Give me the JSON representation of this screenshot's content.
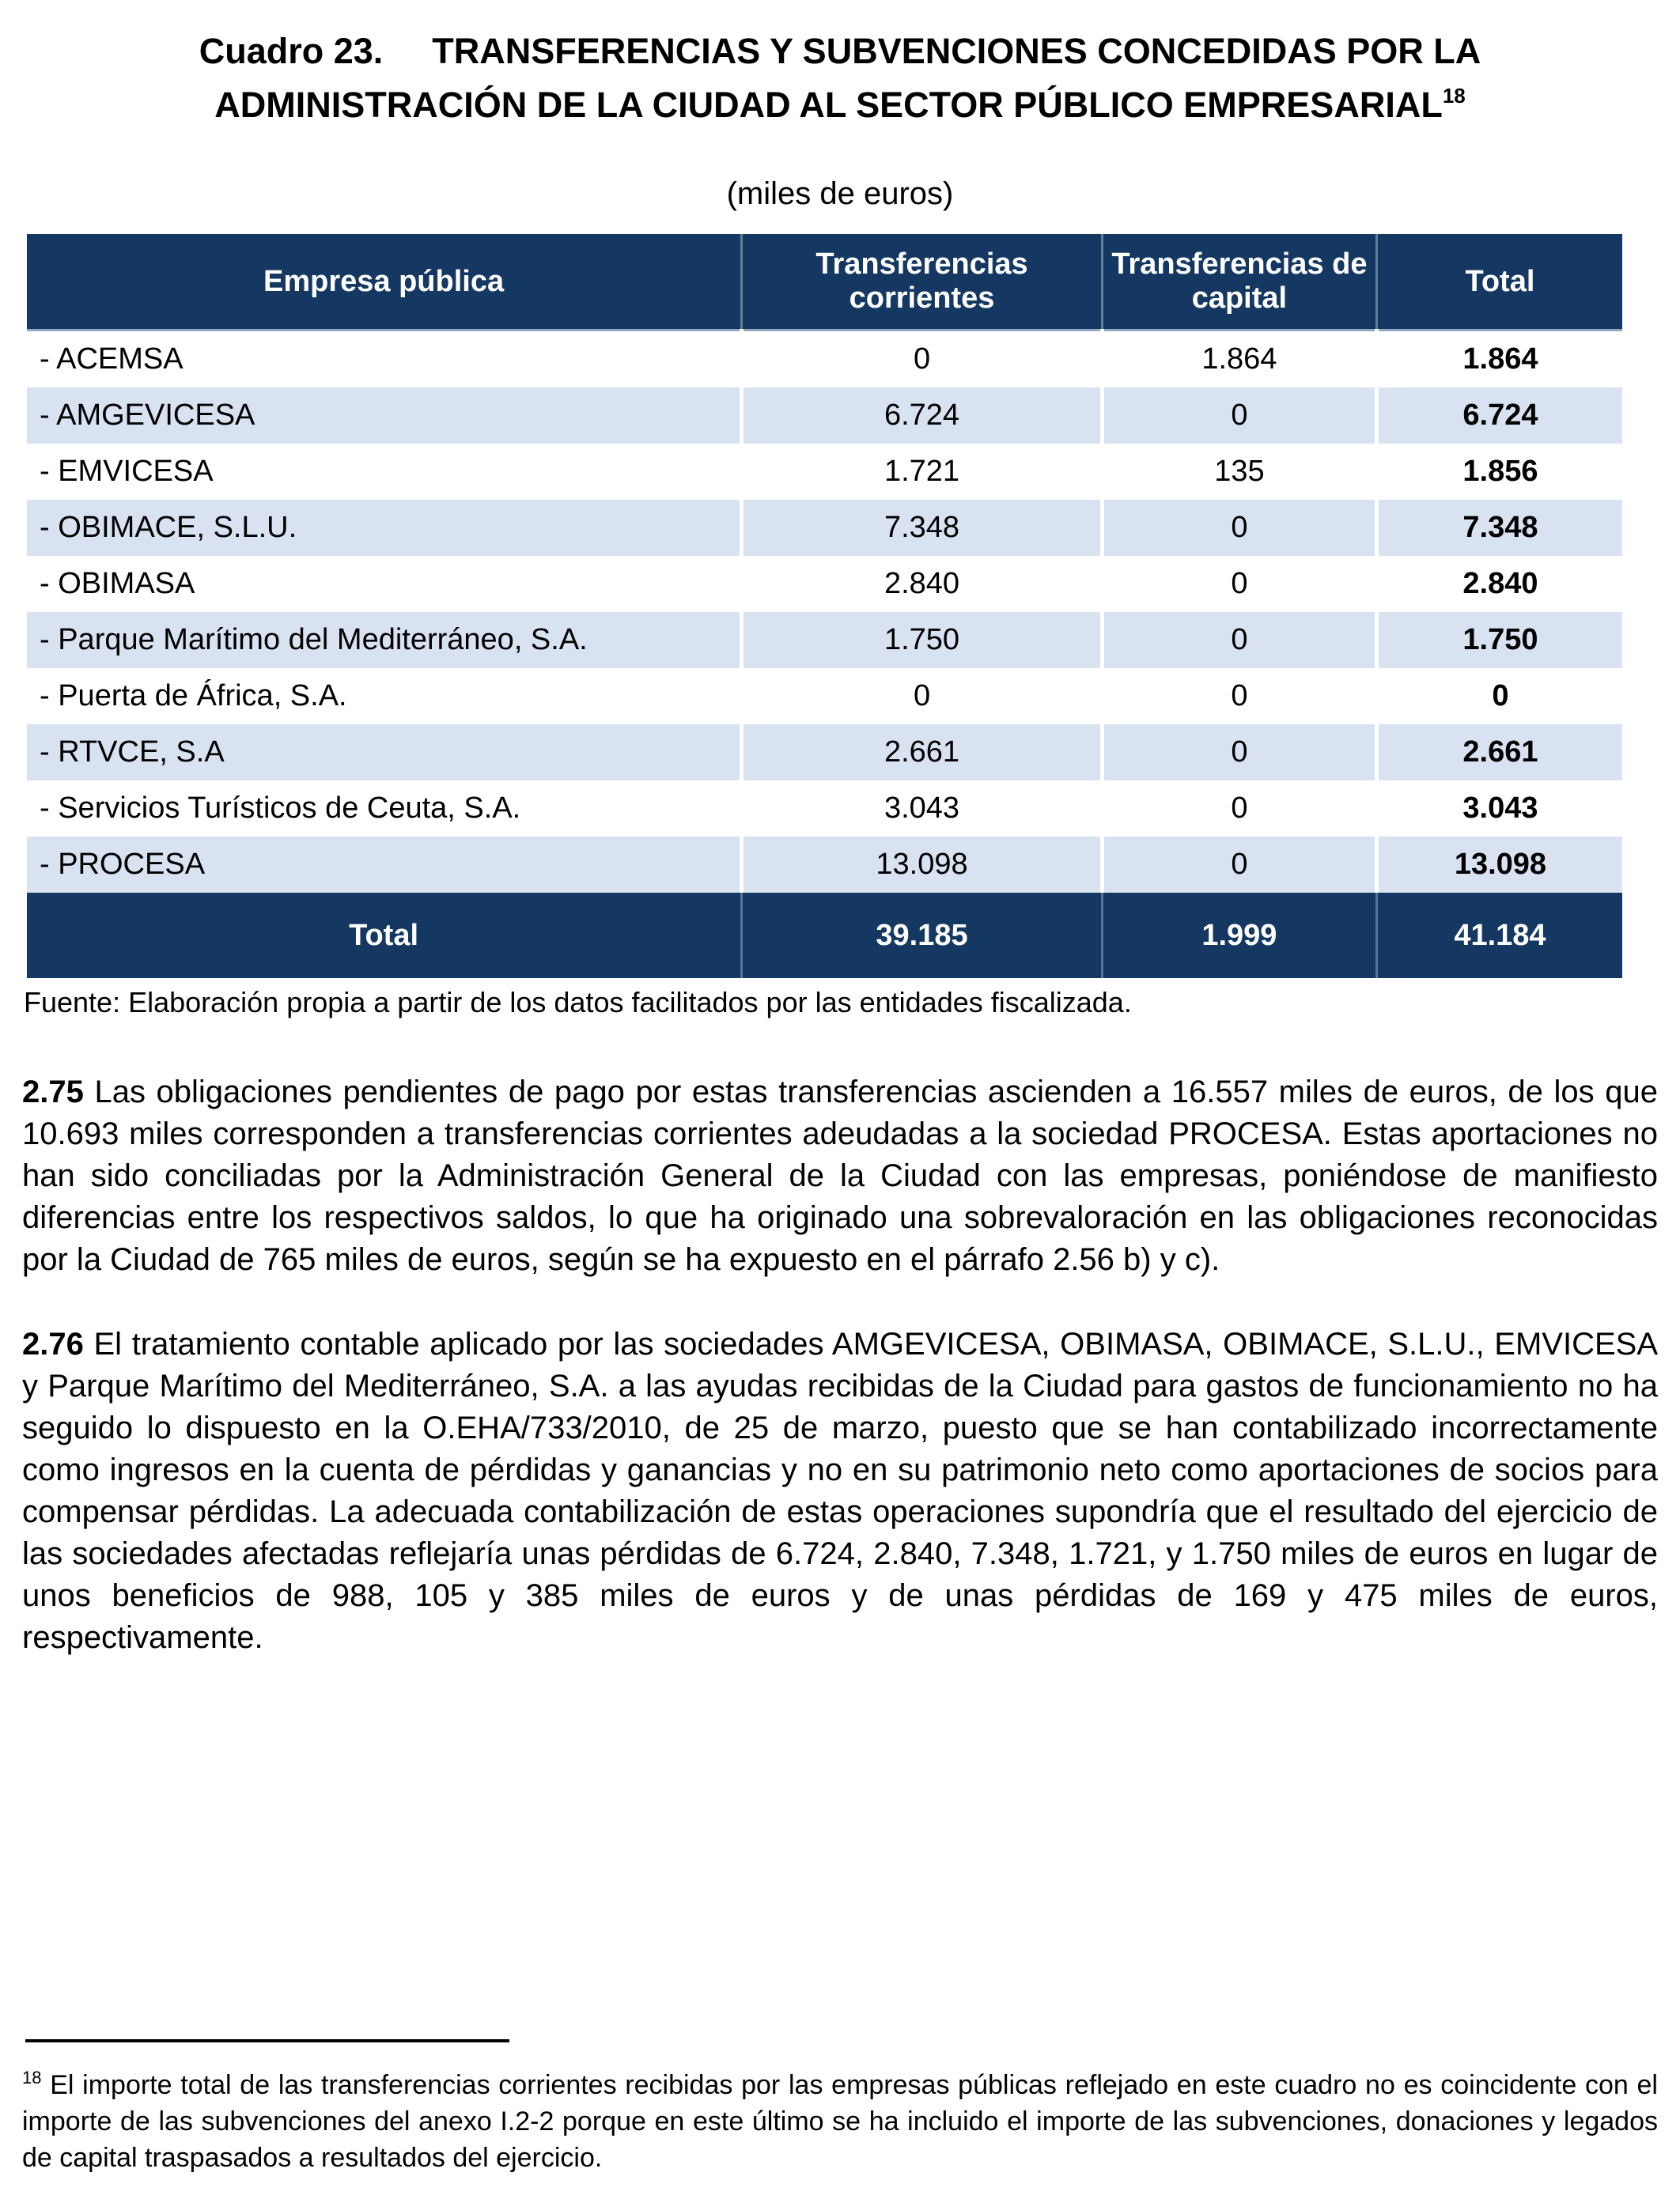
{
  "title": {
    "label": "Cuadro 23.",
    "line1": "TRANSFERENCIAS Y SUBVENCIONES CONCEDIDAS POR LA",
    "line2": "ADMINISTRACIÓN DE LA CIUDAD AL SECTOR PÚBLICO EMPRESARIAL",
    "footnote_ref": "18",
    "subtitle": "(miles de euros)"
  },
  "table": {
    "headers": [
      "Empresa pública",
      "Transferencias corrientes",
      "Transferencias de capital",
      "Total"
    ],
    "rows": [
      {
        "name": "- ACEMSA",
        "corrientes": "0",
        "capital": "1.864",
        "total": "1.864"
      },
      {
        "name": "- AMGEVICESA",
        "corrientes": "6.724",
        "capital": "0",
        "total": "6.724"
      },
      {
        "name": "- EMVICESA",
        "corrientes": "1.721",
        "capital": "135",
        "total": "1.856"
      },
      {
        "name": "- OBIMACE, S.L.U.",
        "corrientes": "7.348",
        "capital": "0",
        "total": "7.348"
      },
      {
        "name": "- OBIMASA",
        "corrientes": "2.840",
        "capital": "0",
        "total": "2.840"
      },
      {
        "name": "- Parque Marítimo del Mediterráneo, S.A.",
        "corrientes": "1.750",
        "capital": "0",
        "total": "1.750"
      },
      {
        "name": "- Puerta de África, S.A.",
        "corrientes": "0",
        "capital": "0",
        "total": "0"
      },
      {
        "name": "- RTVCE, S.A",
        "corrientes": "2.661",
        "capital": "0",
        "total": "2.661"
      },
      {
        "name": "- Servicios Turísticos de Ceuta, S.A.",
        "corrientes": "3.043",
        "capital": "0",
        "total": "3.043"
      },
      {
        "name": "- PROCESA",
        "corrientes": "13.098",
        "capital": "0",
        "total": "13.098"
      }
    ],
    "total_row": {
      "label": "Total",
      "corrientes": "39.185",
      "capital": "1.999",
      "total": "41.184"
    },
    "source": "Fuente: Elaboración propia a partir de los datos facilitados por las entidades fiscalizada."
  },
  "paragraphs": [
    {
      "number": "2.75",
      "text": "Las obligaciones pendientes de pago por estas transferencias ascienden a 16.557 miles de euros, de los que 10.693 miles corresponden a transferencias corrientes adeudadas a la sociedad PROCESA. Estas aportaciones no han sido conciliadas por la Administración General de la Ciudad con las empresas, poniéndose de manifiesto diferencias entre los respectivos saldos, lo que ha originado una sobrevaloración en las obligaciones reconocidas por la Ciudad de 765 miles de euros, según se ha expuesto en el párrafo 2.56 b) y c)."
    },
    {
      "number": "2.76",
      "text": "El tratamiento contable aplicado por las sociedades AMGEVICESA, OBIMASA, OBIMACE, S.L.U., EMVICESA y Parque Marítimo del Mediterráneo, S.A. a las ayudas recibidas de la Ciudad para gastos de funcionamiento no ha seguido lo dispuesto en la O.EHA/733/2010, de 25 de marzo, puesto que se han contabilizado incorrectamente como ingresos en la cuenta de pérdidas y ganancias y no en su patrimonio neto como aportaciones de socios para compensar pérdidas. La adecuada contabilización de estas operaciones supondría que el resultado del ejercicio de las sociedades afectadas reflejaría unas pérdidas de 6.724, 2.840, 7.348, 1.721, y 1.750 miles de euros en lugar de unos beneficios de 988, 105 y 385 miles de euros y de unas pérdidas de 169 y 475 miles de euros, respectivamente."
    }
  ],
  "footnote": {
    "number": "18",
    "text": "El importe total de las transferencias corrientes recibidas por las empresas públicas reflejado en este cuadro no es coincidente con el importe de las subvenciones del anexo I.2-2 porque en este último se ha incluido el importe de las subvenciones, donaciones y legados de capital traspasados a resultados del ejercicio."
  },
  "colors": {
    "header_bg": "#143862",
    "stripe_bg": "#D9E2F1",
    "text": "#000000"
  }
}
